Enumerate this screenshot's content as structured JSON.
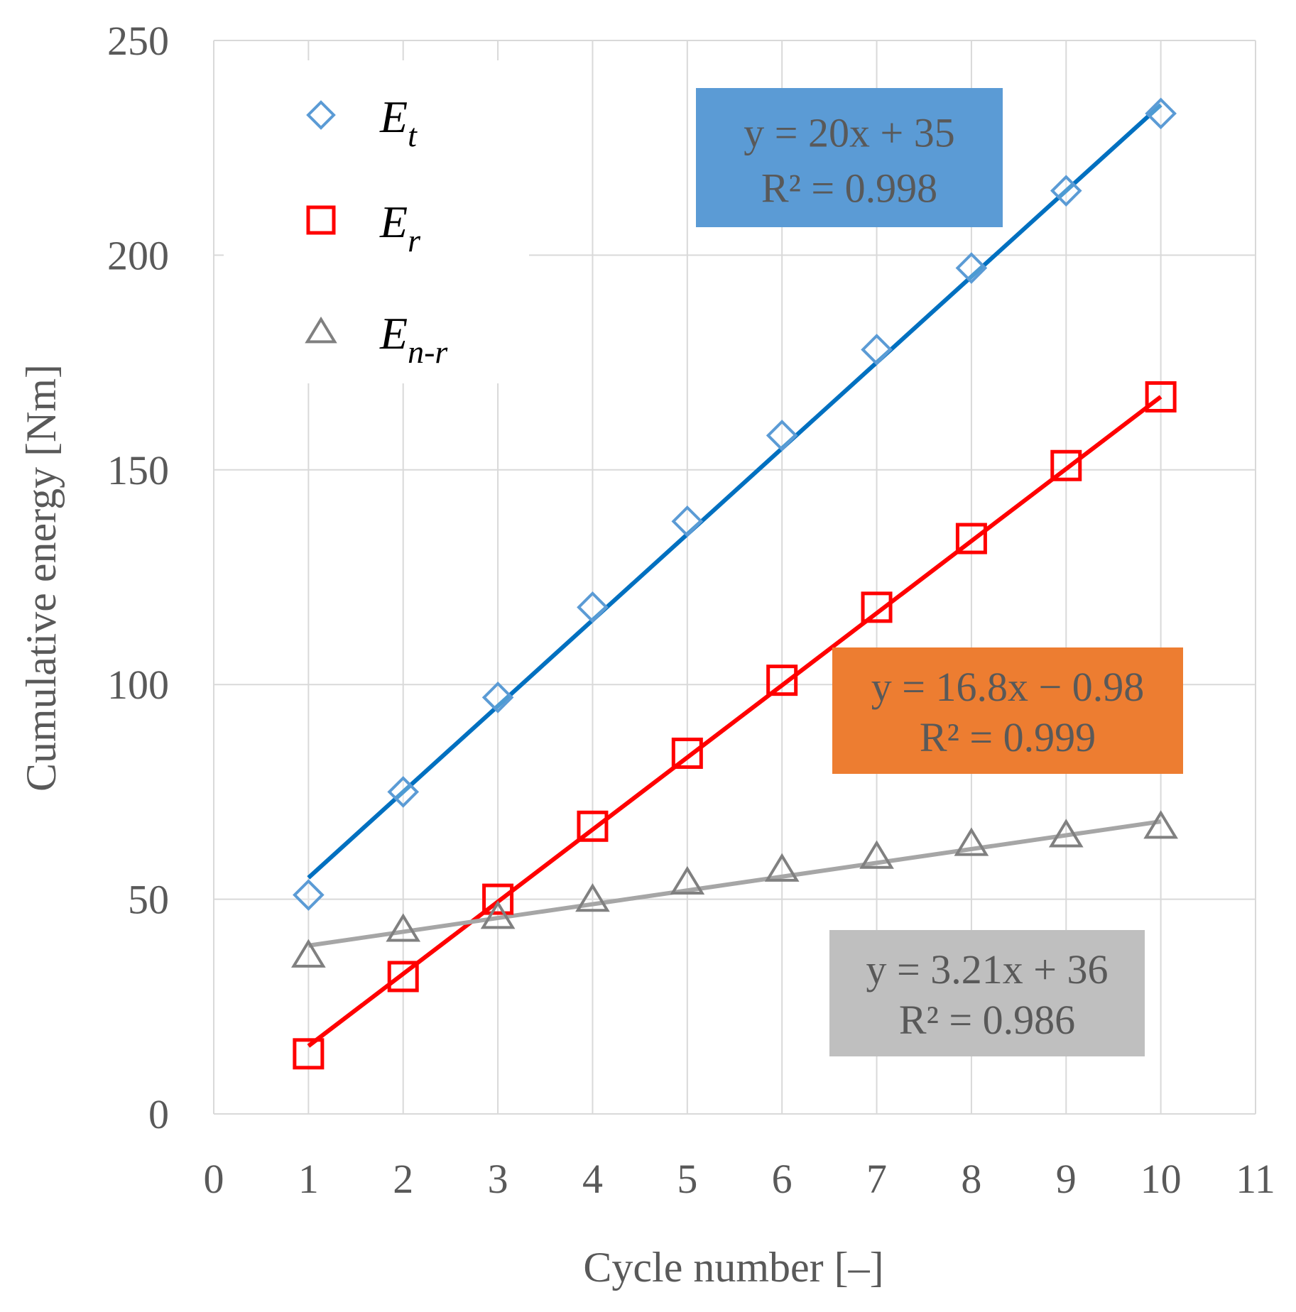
{
  "chart_data": {
    "type": "scatter",
    "title": "",
    "xlabel": "Cycle number [–]",
    "ylabel": "Cumulative energy [Nm]",
    "xlim": [
      0,
      11
    ],
    "ylim": [
      0,
      250
    ],
    "x_ticks": [
      "0",
      "1",
      "2",
      "3",
      "4",
      "5",
      "6",
      "7",
      "8",
      "9",
      "10",
      "11"
    ],
    "y_ticks": [
      "0",
      "50",
      "100",
      "150",
      "200",
      "250"
    ],
    "grid": true,
    "legend_position": "top-left",
    "x": [
      1,
      2,
      3,
      4,
      5,
      6,
      7,
      8,
      9,
      10
    ],
    "series": [
      {
        "name": "E_t",
        "legend_main": "E",
        "legend_sub": "t",
        "marker": "diamond",
        "color": "#5B9BD5",
        "line_color": "#0070C0",
        "values": [
          51,
          75,
          97,
          118,
          138,
          158,
          178,
          197,
          215,
          233
        ],
        "trendline": {
          "slope": 20,
          "intercept": 35,
          "equation": "y = 20x + 35",
          "r2": "R² = 0.998",
          "box_color": "#5B9BD5"
        }
      },
      {
        "name": "E_r",
        "legend_main": "E",
        "legend_sub": "r",
        "marker": "square",
        "color": "#FF0000",
        "line_color": "#FF0000",
        "values": [
          14,
          32,
          50,
          67,
          84,
          101,
          118,
          134,
          151,
          167
        ],
        "trendline": {
          "slope": 16.8,
          "intercept": -0.98,
          "equation": "y = 16.8x − 0.98",
          "r2": "R² = 0.999",
          "box_color": "#ED7D31"
        }
      },
      {
        "name": "E_n-r",
        "legend_main": "E",
        "legend_sub": "n-r",
        "marker": "triangle",
        "color": "#808080",
        "line_color": "#A6A6A6",
        "values": [
          37,
          43,
          46,
          50,
          54,
          57,
          60,
          63,
          65,
          67
        ],
        "trendline": {
          "slope": 3.21,
          "intercept": 36,
          "equation": "y = 3.21x + 36",
          "r2": "R² = 0.986",
          "box_color": "#BFBFBF"
        }
      }
    ]
  }
}
